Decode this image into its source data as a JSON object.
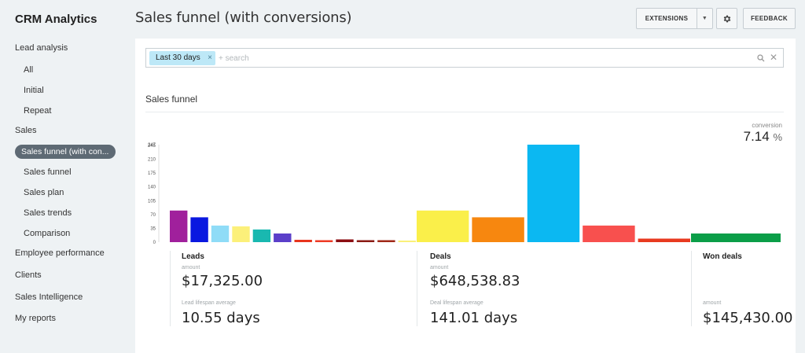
{
  "app": {
    "title": "CRM Analytics"
  },
  "sidebar": {
    "items": [
      {
        "label": "Lead analysis"
      },
      {
        "label": "All"
      },
      {
        "label": "Initial"
      },
      {
        "label": "Repeat"
      },
      {
        "label": "Sales"
      },
      {
        "label": "Sales funnel (with con..."
      },
      {
        "label": "Sales funnel"
      },
      {
        "label": "Sales plan"
      },
      {
        "label": "Sales trends"
      },
      {
        "label": "Comparison"
      },
      {
        "label": "Employee performance"
      },
      {
        "label": "Clients"
      },
      {
        "label": "Sales Intelligence"
      },
      {
        "label": "My reports"
      }
    ]
  },
  "header": {
    "title": "Sales funnel (with conversions)",
    "extensions_label": "EXTENSIONS",
    "feedback_label": "FEEDBACK"
  },
  "filter": {
    "tag_label": "Last 30 days",
    "search_placeholder": "+ search"
  },
  "section": {
    "title": "Sales funnel"
  },
  "conversion": {
    "label": "conversion",
    "value": "7.14",
    "unit": "%"
  },
  "chart_data": {
    "type": "bar",
    "yticks": [
      0,
      35,
      70,
      105,
      140,
      175,
      210,
      245,
      247
    ],
    "ylim": [
      0,
      247
    ],
    "groups": [
      {
        "name": "Leads",
        "values": [
          80,
          63,
          42,
          40,
          32,
          22,
          6,
          5,
          7,
          5,
          5,
          4
        ],
        "colors": [
          "#a0209c",
          "#0a18e0",
          "#8fdcf7",
          "#fcf07a",
          "#19b8b0",
          "#5b3fc9",
          "#e8341c",
          "#ee3a25",
          "#8b0e12",
          "#8a1a14",
          "#a02818",
          "#faf07a"
        ]
      },
      {
        "name": "Deals",
        "values": [
          80,
          63,
          247,
          42,
          9
        ],
        "colors": [
          "#faef4a",
          "#f7870f",
          "#0bb8f2",
          "#f8504e",
          "#e83a1f"
        ]
      },
      {
        "name": "Won deals",
        "values": [
          22
        ],
        "colors": [
          "#0b9e48"
        ]
      }
    ]
  },
  "stats": {
    "leads": {
      "title": "Leads",
      "amount_label": "amount",
      "amount": "$17,325.00",
      "lifespan_label": "Lead lifespan average",
      "lifespan": "10.55 days"
    },
    "deals": {
      "title": "Deals",
      "amount_label": "amount",
      "amount": "$648,538.83",
      "lifespan_label": "Deal lifespan average",
      "lifespan": "141.01 days"
    },
    "won": {
      "title": "Won deals",
      "amount_label": "amount",
      "amount": "$145,430.00"
    }
  }
}
